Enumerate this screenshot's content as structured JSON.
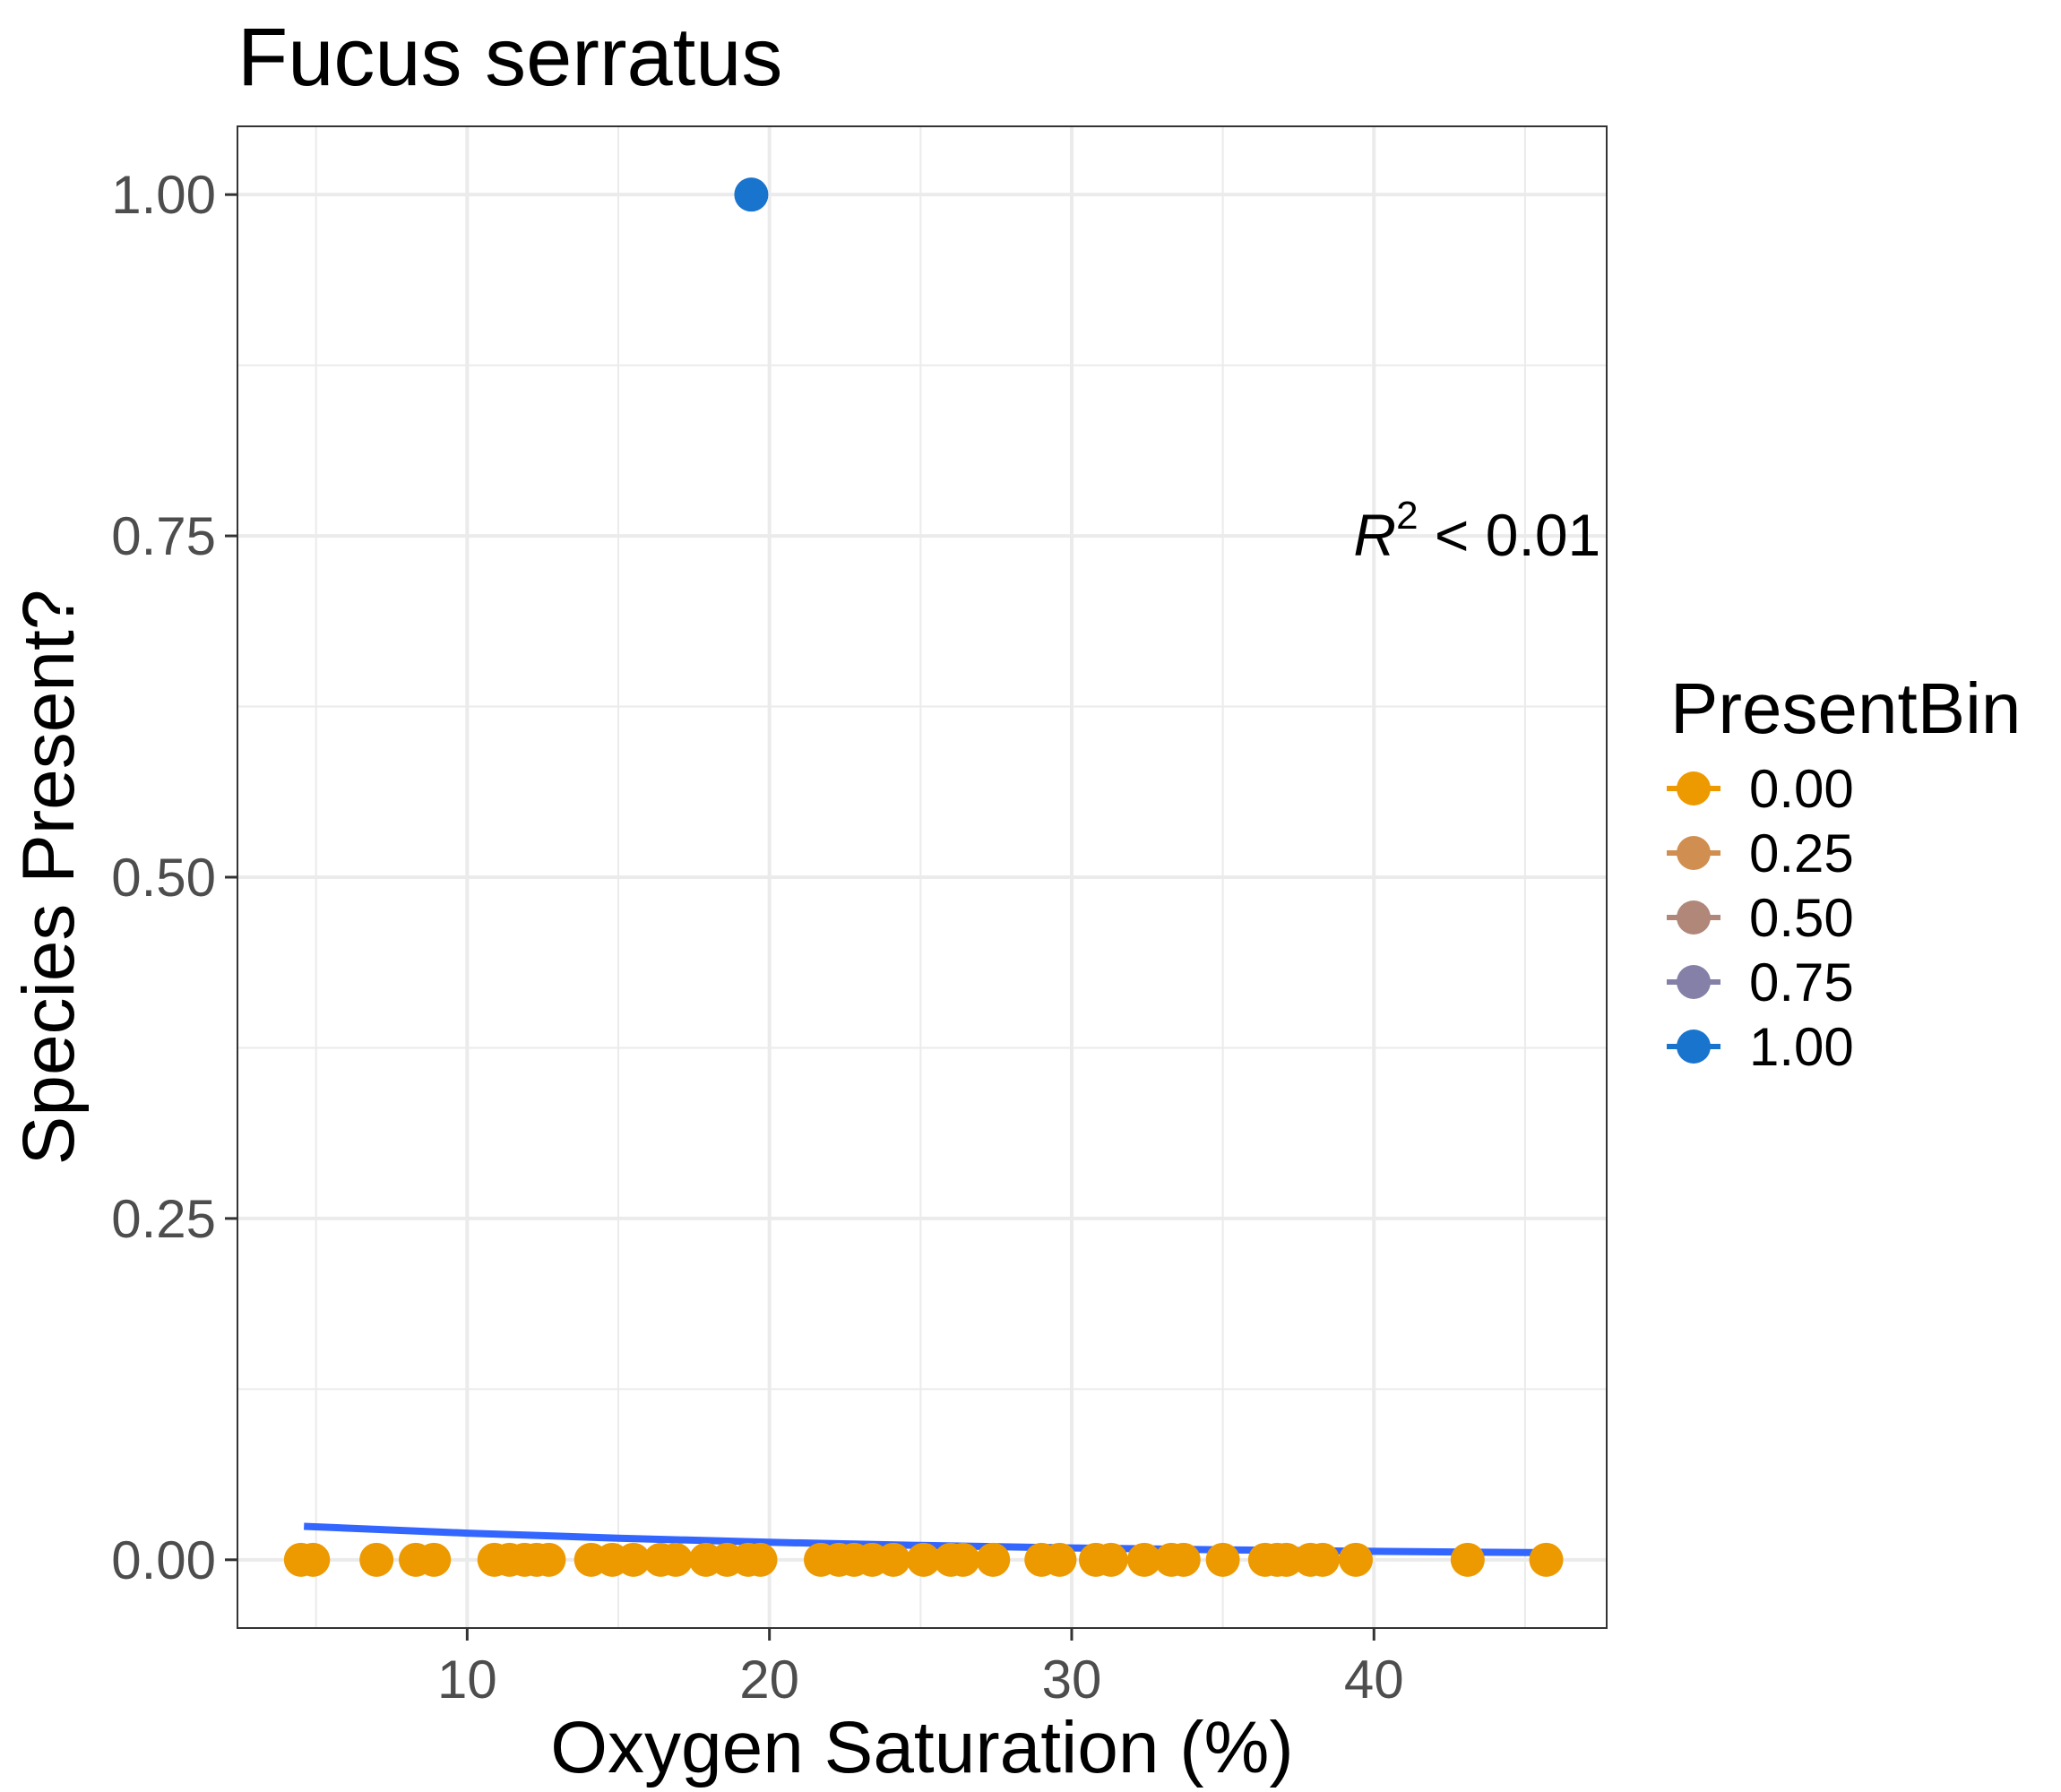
{
  "chart_data": {
    "type": "scatter",
    "title": "Fucus serratus",
    "xlabel": "Oxygen Saturation (%)",
    "ylabel": "Species Present?",
    "xlim": [
      2.4,
      47.7
    ],
    "ylim": [
      -0.05,
      1.05
    ],
    "x_ticks": [
      10,
      20,
      30,
      40
    ],
    "x_tick_labels": [
      "10",
      "20",
      "30",
      "40"
    ],
    "y_ticks": [
      0,
      0.25,
      0.5,
      0.75,
      1.0
    ],
    "y_tick_labels": [
      "0.00",
      "0.25",
      "0.50",
      "0.75",
      "1.00"
    ],
    "grid": true,
    "legend": {
      "title": "PresentBin",
      "placement": "right",
      "entries": [
        {
          "label": "0.00",
          "color": "#ED9A00"
        },
        {
          "label": "0.25",
          "color": "#D08F50"
        },
        {
          "label": "0.50",
          "color": "#B08779"
        },
        {
          "label": "0.75",
          "color": "#8580A8"
        },
        {
          "label": "1.00",
          "color": "#1874CD"
        }
      ]
    },
    "points": [
      {
        "x": 4.5,
        "y": 0
      },
      {
        "x": 4.9,
        "y": 0
      },
      {
        "x": 7.0,
        "y": 0
      },
      {
        "x": 8.3,
        "y": 0
      },
      {
        "x": 8.9,
        "y": 0
      },
      {
        "x": 10.9,
        "y": 0
      },
      {
        "x": 11.4,
        "y": 0
      },
      {
        "x": 11.9,
        "y": 0
      },
      {
        "x": 12.3,
        "y": 0
      },
      {
        "x": 12.7,
        "y": 0
      },
      {
        "x": 14.1,
        "y": 0
      },
      {
        "x": 14.8,
        "y": 0
      },
      {
        "x": 15.5,
        "y": 0
      },
      {
        "x": 16.4,
        "y": 0
      },
      {
        "x": 16.9,
        "y": 0
      },
      {
        "x": 17.9,
        "y": 0
      },
      {
        "x": 18.6,
        "y": 0
      },
      {
        "x": 19.3,
        "y": 0
      },
      {
        "x": 19.7,
        "y": 0
      },
      {
        "x": 21.7,
        "y": 0
      },
      {
        "x": 22.3,
        "y": 0
      },
      {
        "x": 22.8,
        "y": 0
      },
      {
        "x": 23.4,
        "y": 0
      },
      {
        "x": 24.1,
        "y": 0
      },
      {
        "x": 25.1,
        "y": 0
      },
      {
        "x": 26.0,
        "y": 0
      },
      {
        "x": 26.4,
        "y": 0
      },
      {
        "x": 27.4,
        "y": 0
      },
      {
        "x": 29.0,
        "y": 0
      },
      {
        "x": 29.6,
        "y": 0
      },
      {
        "x": 30.8,
        "y": 0
      },
      {
        "x": 31.3,
        "y": 0
      },
      {
        "x": 32.4,
        "y": 0
      },
      {
        "x": 33.3,
        "y": 0
      },
      {
        "x": 33.7,
        "y": 0
      },
      {
        "x": 35.0,
        "y": 0
      },
      {
        "x": 36.4,
        "y": 0
      },
      {
        "x": 36.8,
        "y": 0
      },
      {
        "x": 37.1,
        "y": 0
      },
      {
        "x": 37.9,
        "y": 0
      },
      {
        "x": 38.3,
        "y": 0
      },
      {
        "x": 39.4,
        "y": 0
      },
      {
        "x": 43.1,
        "y": 0
      },
      {
        "x": 45.7,
        "y": 0
      },
      {
        "x": 19.4,
        "y": 1.0
      }
    ],
    "fit_line": {
      "color": "#3366FF",
      "x": [
        4.6,
        10,
        15,
        20,
        25,
        30,
        35,
        40,
        45.7
      ],
      "y": [
        0.0245,
        0.0195,
        0.0158,
        0.0128,
        0.0105,
        0.0087,
        0.0073,
        0.0062,
        0.0052
      ]
    },
    "annotation": {
      "prefix": "R",
      "exponent": "2",
      "suffix": " < 0.01",
      "x": 47.5,
      "y": 0.75
    }
  }
}
